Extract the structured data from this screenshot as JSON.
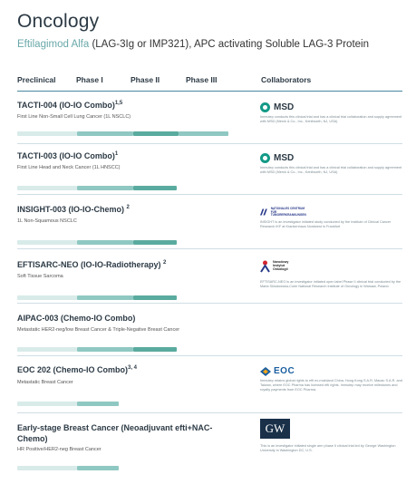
{
  "page": {
    "title": "Oncology",
    "subtitle_drug": "Eftilagimod Alfa",
    "subtitle_rest": " (LAG-3Ig or IMP321), APC activating Soluble LAG-3 Protein"
  },
  "headers": {
    "preclinical": "Preclinical",
    "phase1": "Phase I",
    "phase2": "Phase II",
    "phase3": "Phase III",
    "collaborators": "Collaborators"
  },
  "trials": [
    {
      "name": "TACTI-004 (IO-IO Combo)",
      "sup": "1,5",
      "indication": "First Line Non-Small Cell Lung Cancer (1L NSCLC)",
      "phase_progress": 0.78,
      "collaborator": "MSD",
      "note": "Immutep conducts this clinical trial and has a clinical trial collaboration and supply agreement with MSD (Merck & Co., Inc., Kenilworth, NJ, USA)"
    },
    {
      "name": "TACTI-003 (IO-IO Combo)",
      "sup": "1",
      "indication": "First Line Head and Neck Cancer (1L HNSCC)",
      "phase_progress": 0.55,
      "collaborator": "MSD",
      "note": "Immutep conducts this clinical trial and has a clinical trial collaboration and supply agreement with MSD (Merck & Co., Inc., Kenilworth, NJ, USA)"
    },
    {
      "name": "INSIGHT-003 (IO-IO-Chemo)",
      "sup": "2",
      "indication": "1L Non-Squamous NSCLC",
      "phase_progress": 0.55,
      "collaborator": "NCT",
      "note": "INSIGHT is an investigator initiated study conducted by the Institute of Clinical Cancer Research IKF at Krankenhaus Nordwest in Frankfurt"
    },
    {
      "name": "EFTISARC-NEO (IO-IO-Radiotherapy)",
      "sup": "2",
      "indication": "Soft Tissue Sarcoma",
      "phase_progress": 0.55,
      "collaborator": "Narodowy Instytut Onkologii",
      "note": "EFTISARC-NEO is an investigator initiated open label Phase II clinical trial conducted by the Maria Sklodowska-Curie National Research Institute of Oncology in Warsaw, Poland."
    },
    {
      "name": "AIPAC-003 (Chemo-IO Combo)",
      "sup": "",
      "indication": "Metastatic HER2-neg/low Breast Cancer & Triple-Negative Breast Cancer",
      "phase_progress": 0.55,
      "collaborator": "",
      "note": ""
    },
    {
      "name": "EOC 202 (Chemo-IO Combo)",
      "sup": "3, 4",
      "indication": "Metastatic Breast Cancer",
      "phase_progress": 0.42,
      "collaborator": "EOC",
      "note": "Immutep retains global rights to efti ex-mainland China, Hong Kong S.A.R, Macau S.A.R. and Taiwan, where EOC Pharma has licensed efti rights. Immutep may receive milestones and royalty payments from EOC Pharma."
    },
    {
      "name": "Early-stage Breast Cancer (Neoadjuvant efti+NAC-",
      "name_line2": "Chemo)",
      "sup": "",
      "indication": "HR Positive/HER2-neg Breast Cancer",
      "phase_progress": 0.42,
      "collaborator": "GW",
      "note": "This is an investigator initiated single arm phase II clinical trial led by George Washington University in Washington DC, U.S."
    }
  ],
  "logos": {
    "msd": "MSD",
    "nct_line1": "NATIONALES CENTRUM",
    "nct_line2": "FÜR TUMORERKRANKUNGEN",
    "nio_line1": "Narodowy",
    "nio_line2": "Instytut",
    "nio_line3": "Onkologii",
    "eoc": "EOC",
    "gw": "GW"
  },
  "colors": {
    "accent": "#6aa8a9",
    "bar_light": "#d8ebe9",
    "bar_mid": "#8fc8c2",
    "bar_dark": "#5aab9f",
    "rule": "#4a88a0"
  }
}
